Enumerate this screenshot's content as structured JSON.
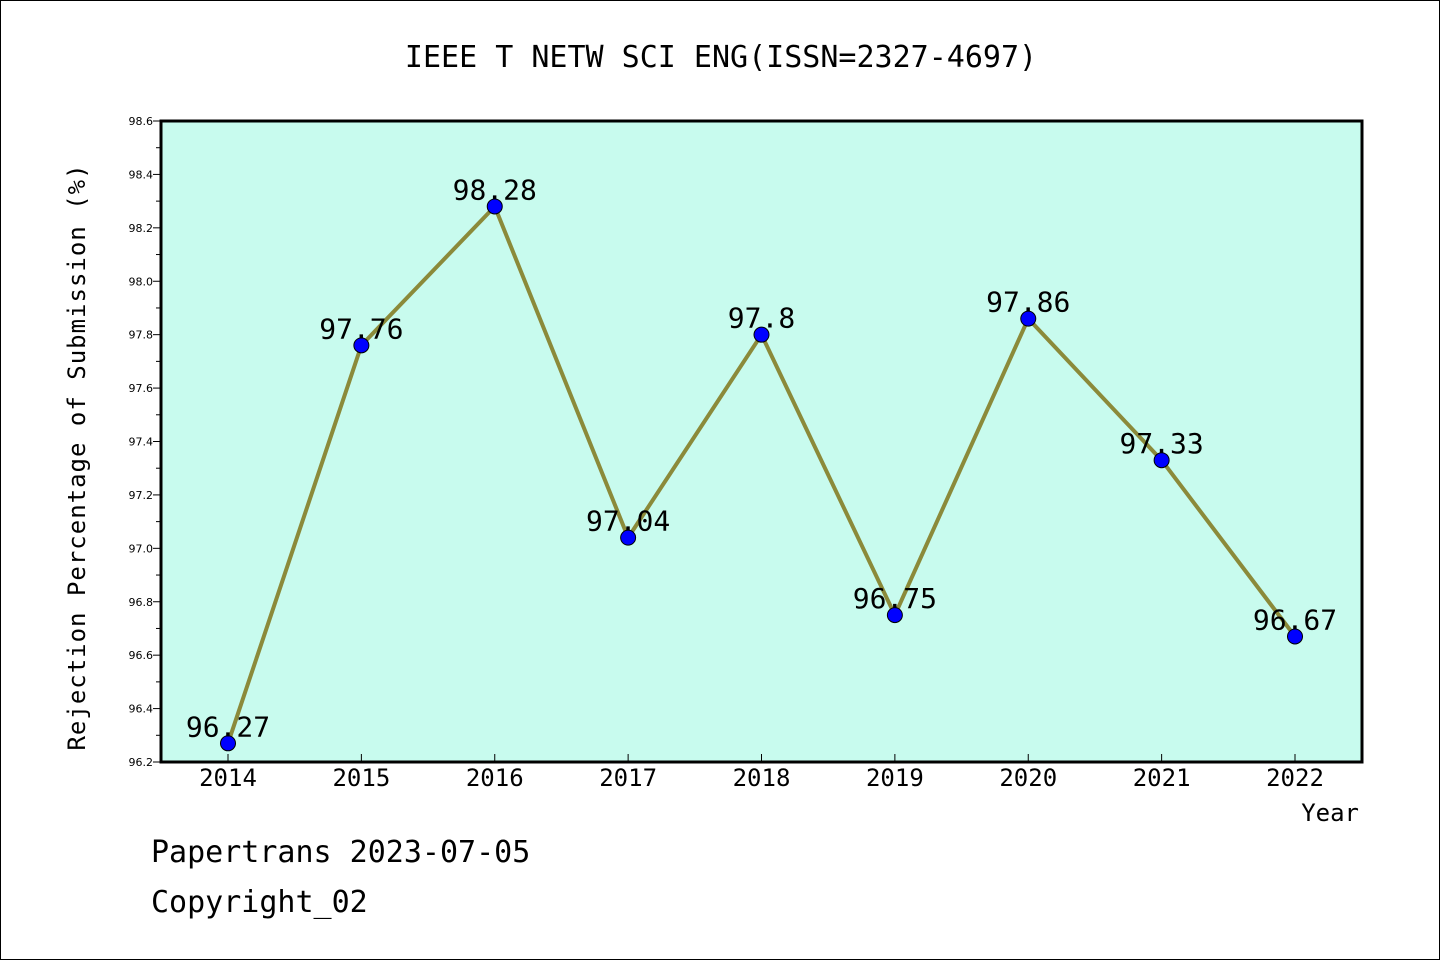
{
  "chart_data": {
    "type": "line",
    "title": "IEEE T NETW SCI ENG(ISSN=2327-4697)",
    "xlabel": "Year",
    "ylabel": "Rejection Percentage of Submission (%)",
    "categories": [
      "2014",
      "2015",
      "2016",
      "2017",
      "2018",
      "2019",
      "2020",
      "2021",
      "2022"
    ],
    "series": [
      {
        "values": [
          96.27,
          97.76,
          98.28,
          97.04,
          97.8,
          96.75,
          97.86,
          97.33,
          96.67
        ],
        "data_labels": [
          "96.27",
          "97.76",
          "98.28",
          "97.04",
          "97.8",
          "96.75",
          "97.86",
          "97.33",
          "96.67"
        ]
      }
    ],
    "ylim": [
      96.2,
      98.6
    ],
    "yticks": [
      "96.2",
      "96.4",
      "96.6",
      "96.8",
      "97.0",
      "97.2",
      "97.4",
      "97.6",
      "97.8",
      "98.0",
      "98.2",
      "98.4",
      "98.6"
    ],
    "grid": false,
    "colors": {
      "plot_background": "#c8fbee",
      "line": "#8b8a3a",
      "marker": "#0000ff"
    }
  },
  "footer": {
    "line1": "Papertrans 2023-07-05",
    "line2": "Copyright_02"
  }
}
